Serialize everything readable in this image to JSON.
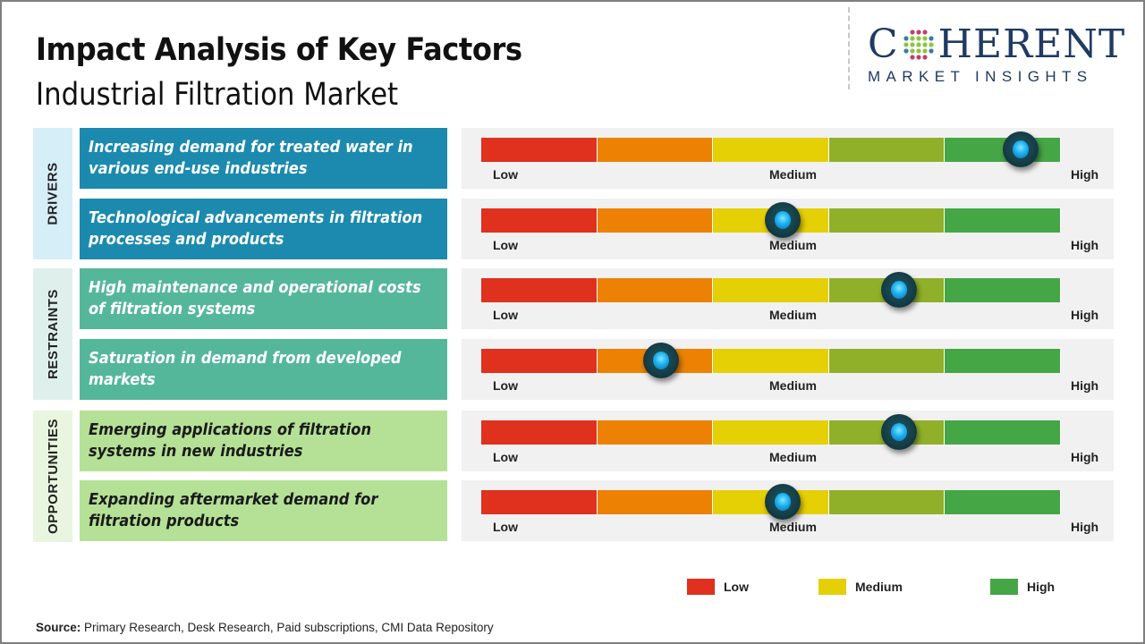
{
  "header": {
    "title": "Impact Analysis of Key Factors",
    "subtitle": "Industrial Filtration Market"
  },
  "logo": {
    "main_left": "C",
    "main_right": "HERENT",
    "sub": "MARKET INSIGHTS"
  },
  "colors": {
    "drivers_bg": "#1b8aae",
    "drivers_cat_bg": "#d6eef8",
    "restraints_bg": "#55b79a",
    "restraints_cat_bg": "#dff0ec",
    "opportunities_bg": "#b5e196",
    "opportunities_cat_bg": "#e9f6df",
    "scale": [
      "#e0301e",
      "#ec8104",
      "#e5cf05",
      "#90b02a",
      "#45a646"
    ]
  },
  "scale_labels": {
    "low": "Low",
    "medium": "Medium",
    "high": "High"
  },
  "chart_data": {
    "type": "table",
    "title": "Impact Analysis of Key Factors - Industrial Filtration Market",
    "scale": {
      "min": "Low",
      "mid": "Medium",
      "max": "High",
      "range": [
        0,
        1
      ],
      "segments": 5
    },
    "categories": [
      {
        "name": "DRIVERS",
        "factors": [
          {
            "text": "Increasing demand for treated water in various end-use industries",
            "impact": 0.93
          },
          {
            "text": "Technological advancements in filtration processes and products",
            "impact": 0.52
          }
        ]
      },
      {
        "name": "RESTRAINTS",
        "factors": [
          {
            "text": "High maintenance and operational costs of filtration systems",
            "impact": 0.72
          },
          {
            "text": "Saturation in demand from developed markets",
            "impact": 0.31
          }
        ]
      },
      {
        "name": "OPPORTUNITIES",
        "factors": [
          {
            "text": "Emerging applications of filtration systems in new industries",
            "impact": 0.72
          },
          {
            "text": "Expanding aftermarket demand for filtration products",
            "impact": 0.52
          }
        ]
      }
    ],
    "legend": [
      {
        "label": "Low",
        "color": "#e0301e"
      },
      {
        "label": "Medium",
        "color": "#e5cf05"
      },
      {
        "label": "High",
        "color": "#45a646"
      }
    ]
  },
  "source": {
    "label": "Source:",
    "text": " Primary Research, Desk Research, Paid subscriptions, CMI Data Repository"
  }
}
